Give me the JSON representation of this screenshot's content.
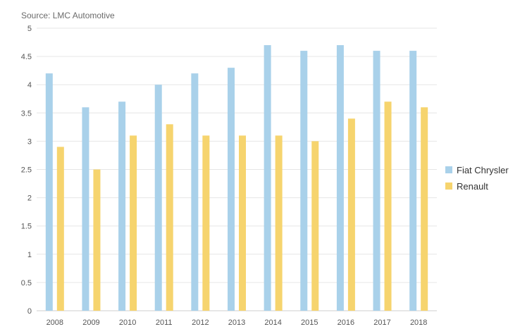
{
  "chart_data": {
    "type": "bar",
    "source": "Source: LMC Automotive",
    "categories": [
      "2008",
      "2009",
      "2010",
      "2011",
      "2012",
      "2013",
      "2014",
      "2015",
      "2016",
      "2017",
      "2018"
    ],
    "series": [
      {
        "name": "Fiat Chrysler",
        "color": "#a9d1ea",
        "values": [
          4.2,
          3.6,
          3.7,
          4.0,
          4.2,
          4.3,
          4.7,
          4.6,
          4.7,
          4.6,
          4.6
        ]
      },
      {
        "name": "Renault",
        "color": "#f6d46e",
        "values": [
          2.9,
          2.5,
          3.1,
          3.3,
          3.1,
          3.1,
          3.1,
          3.0,
          3.4,
          3.7,
          3.6
        ]
      }
    ],
    "y_ticks": [
      "0",
      "0.5",
      "1",
      "1.5",
      "2",
      "2.5",
      "3",
      "3.5",
      "4",
      "4.5",
      "5"
    ],
    "ylim": [
      0,
      5
    ],
    "grid": true,
    "legend_position": "right"
  }
}
